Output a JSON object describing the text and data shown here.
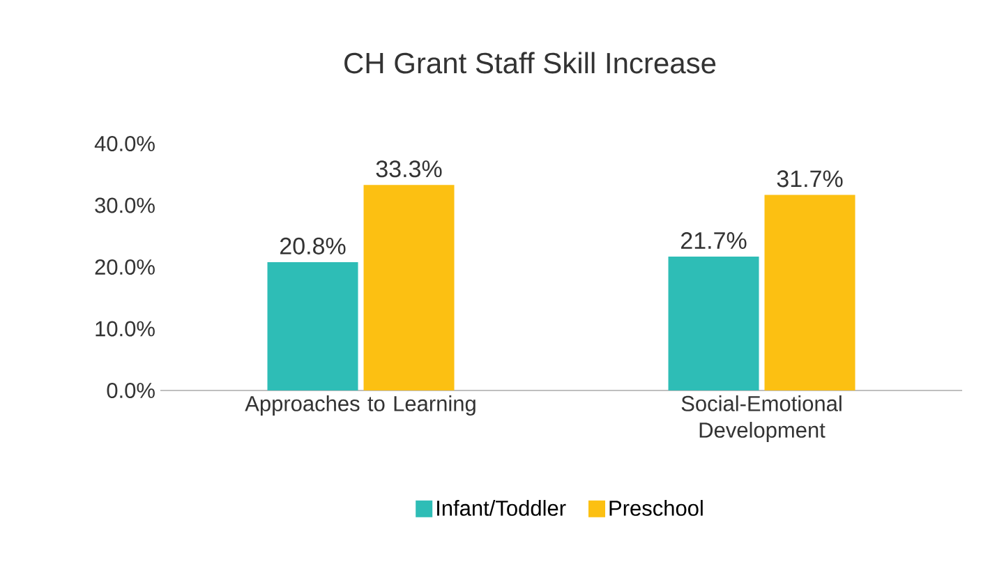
{
  "chart_data": {
    "type": "bar",
    "title": "CH Grant Staff Skill Increase",
    "categories": [
      "Approaches to Learning",
      "Social-Emotional Development"
    ],
    "series": [
      {
        "name": "Infant/Toddler",
        "color": "#2ebdb6",
        "values": [
          20.8,
          21.7
        ],
        "value_labels": [
          "20.8%",
          "21.7%"
        ]
      },
      {
        "name": "Preschool",
        "color": "#fcc012",
        "values": [
          33.3,
          31.7
        ],
        "value_labels": [
          "33.3%",
          "31.7%"
        ]
      }
    ],
    "ylim": [
      0,
      40
    ],
    "yticks": [
      {
        "value": 0,
        "label": "0.0%"
      },
      {
        "value": 10,
        "label": "10.0%"
      },
      {
        "value": 20,
        "label": "20.0%"
      },
      {
        "value": 30,
        "label": "30.0%"
      },
      {
        "value": 40,
        "label": "40.0%"
      }
    ],
    "legend": "bottom"
  }
}
